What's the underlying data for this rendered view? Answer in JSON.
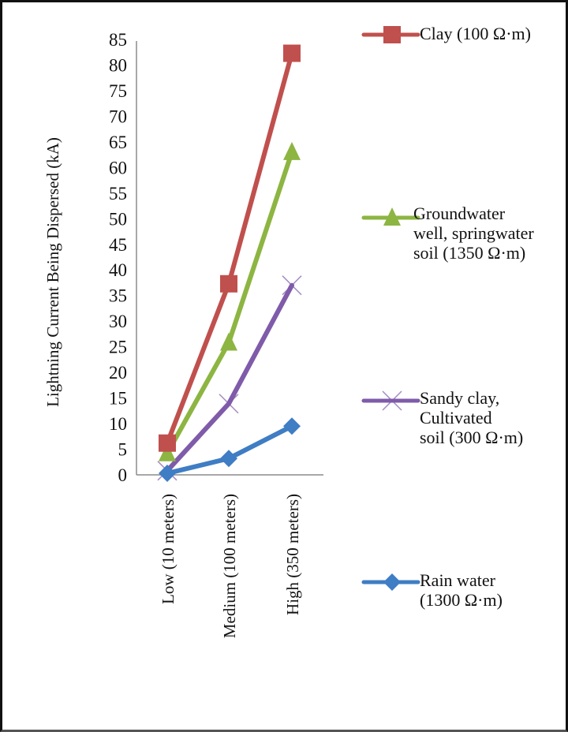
{
  "chart_data": {
    "type": "line",
    "title": "",
    "xlabel": "",
    "ylabel": "Lightning Current Being Dispersed (kA)",
    "categories": [
      "Low (10 meters)",
      "Medium (100 meters)",
      "High  (350  meters)"
    ],
    "ylim": [
      0,
      85
    ],
    "yticks": [
      0,
      5,
      10,
      15,
      20,
      25,
      30,
      35,
      40,
      45,
      50,
      55,
      60,
      65,
      70,
      75,
      80,
      85
    ],
    "grid": false,
    "legend_position": "right",
    "series": [
      {
        "name": "Clay (100 Ω·m)",
        "legend_lines": "Clay (100 Ω·m)",
        "color": "#C0504D",
        "marker": "square",
        "values": [
          6.2,
          37.3,
          82.3
        ]
      },
      {
        "name": "Groundwater well, springwater soil (1350 Ω·m)",
        "legend_lines": "Groundwater\nwell, springwater\nsoil (1350 Ω·m)",
        "color": "#8DB542",
        "marker": "triangle",
        "values": [
          4.2,
          25.8,
          63.0
        ]
      },
      {
        "name": "Sandy clay, Cultivated soil (300 Ω·m)",
        "legend_lines": "Sandy clay,\nCultivated\nsoil (300 Ω·m)",
        "color": "#7F5BAA",
        "marker": "x",
        "values": [
          0.8,
          13.9,
          37.0
        ]
      },
      {
        "name": "Rain water (1300 Ω·m)",
        "legend_lines": "Rain water\n(1300 Ω·m)",
        "color": "#3F7DC4",
        "marker": "diamond",
        "values": [
          0.3,
          3.2,
          9.5
        ]
      }
    ]
  }
}
